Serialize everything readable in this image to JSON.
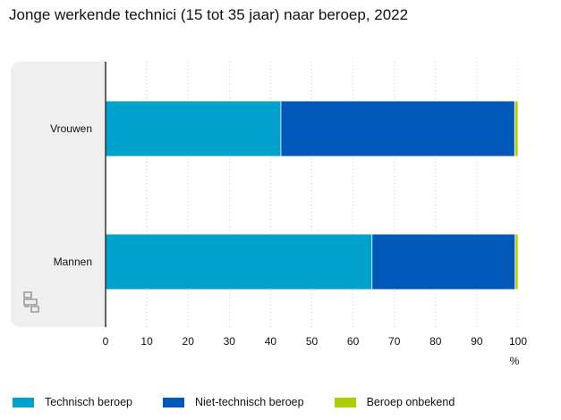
{
  "chart_data": {
    "type": "bar",
    "orientation": "horizontal",
    "stacked": true,
    "title": "Jonge werkende technici (15 tot 35 jaar) naar beroep, 2022",
    "categories": [
      "Vrouwen",
      "Mannen"
    ],
    "series": [
      {
        "name": "Technisch beroep",
        "values": [
          42.5,
          64.6
        ],
        "color": "#00a1cd"
      },
      {
        "name": "Niet-technisch beroep",
        "values": [
          56.7,
          34.7
        ],
        "color": "#0058b8"
      },
      {
        "name": "Beroep onbekend",
        "values": [
          0.8,
          0.7
        ],
        "color": "#afcb05"
      }
    ],
    "x_ticks": [
      "0",
      "10",
      "20",
      "30",
      "40",
      "50",
      "60",
      "70",
      "80",
      "90",
      "100"
    ],
    "xlim": [
      0,
      100
    ],
    "xlabel": "%",
    "grid": "vertical-dotted",
    "legend": "bottom"
  },
  "watermark": "cbs"
}
